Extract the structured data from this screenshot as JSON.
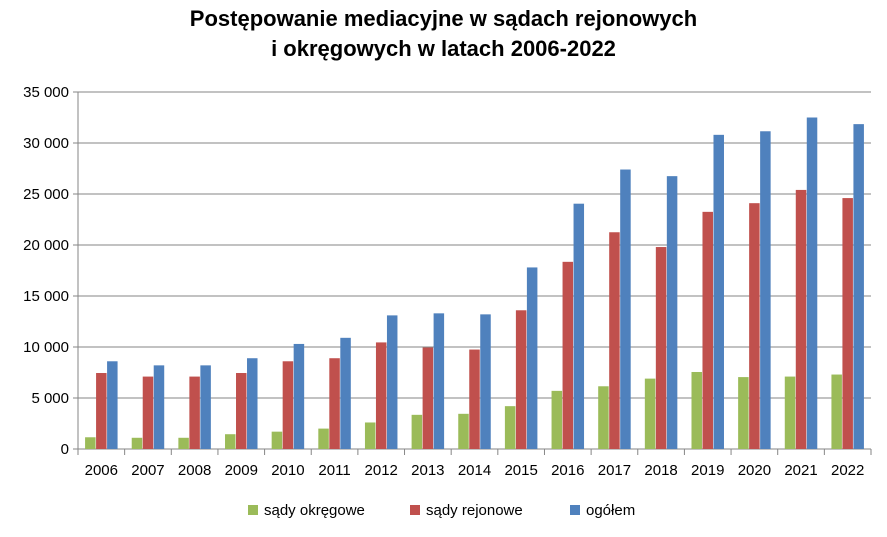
{
  "chart_data": {
    "type": "bar",
    "title_lines": [
      "Postępowanie mediacyjne w sądach rejonowych",
      "i okręgowych w latach 2006-2022"
    ],
    "xlabel": "",
    "ylabel": "",
    "ylim": [
      0,
      35000
    ],
    "yticks": [
      0,
      5000,
      10000,
      15000,
      20000,
      25000,
      30000,
      35000
    ],
    "ytick_labels": [
      "0",
      "5 000",
      "10 000",
      "15 000",
      "20 000",
      "25 000",
      "30 000",
      "35 000"
    ],
    "grid": true,
    "legend_position": "bottom",
    "categories": [
      "2006",
      "2007",
      "2008",
      "2009",
      "2010",
      "2011",
      "2012",
      "2013",
      "2014",
      "2015",
      "2016",
      "2017",
      "2018",
      "2019",
      "2020",
      "2021",
      "2022"
    ],
    "series": [
      {
        "name": "sądy okręgowe",
        "color": "#9BBB59",
        "values": [
          1150,
          1100,
          1100,
          1450,
          1700,
          2000,
          2600,
          3350,
          3450,
          4200,
          5700,
          6150,
          6900,
          7550,
          7050,
          7100,
          7300
        ]
      },
      {
        "name": "sądy rejonowe",
        "color": "#C0504D",
        "values": [
          7450,
          7100,
          7100,
          7450,
          8600,
          8900,
          10450,
          9950,
          9750,
          13600,
          18350,
          21250,
          19800,
          23250,
          24100,
          25400,
          24600
        ]
      },
      {
        "name": "ogółem",
        "color": "#4F81BD",
        "values": [
          8600,
          8200,
          8200,
          8900,
          10300,
          10900,
          13100,
          13300,
          13200,
          17800,
          24050,
          27400,
          26750,
          30800,
          31150,
          32500,
          31850
        ]
      }
    ]
  }
}
